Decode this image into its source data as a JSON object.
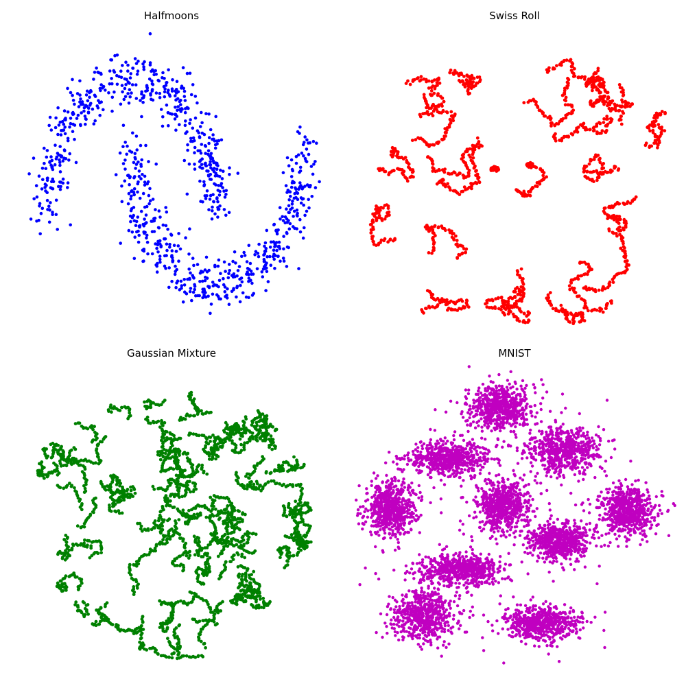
{
  "chart_data": [
    {
      "type": "scatter",
      "title": "Halfmoons",
      "color": "#0000ff",
      "point_radius": 2.3,
      "axes": "off",
      "grid": false,
      "xlim": [
        -1.25,
        2.25
      ],
      "ylim": [
        -0.8,
        1.3
      ],
      "generator": "two interleaving half-circles with gaussian noise",
      "n_points": 1000,
      "noise": 0.1
    },
    {
      "type": "scatter",
      "title": "Swiss Roll",
      "color": "#ff0000",
      "point_radius": 2.4,
      "axes": "off",
      "grid": false,
      "xlim": [
        -1.0,
        1.0
      ],
      "ylim": [
        -1.0,
        1.0
      ],
      "generator": "2-D embedding of a swiss roll as meandering chains",
      "n_points": 1500
    },
    {
      "type": "scatter",
      "title": "Gaussian Mixture",
      "color": "#008000",
      "point_radius": 2.4,
      "axes": "off",
      "grid": false,
      "xlim": [
        -1.0,
        1.0
      ],
      "ylim": [
        -1.0,
        1.0
      ],
      "generator": "2-D embedding of gaussian mixture, filling a blob",
      "n_points": 2500
    },
    {
      "type": "scatter",
      "title": "MNIST",
      "color": "#c000c0",
      "point_radius": 2.2,
      "axes": "off",
      "grid": false,
      "xlim": [
        -1.0,
        1.0
      ],
      "ylim": [
        -1.0,
        1.0
      ],
      "generator": "2-D embedding with 10 dense clusters",
      "n_points": 6000,
      "clusters": [
        {
          "cx": -0.12,
          "cy": 0.78,
          "sx": 0.19,
          "sy": 0.14,
          "weight": 1
        },
        {
          "cx": -0.45,
          "cy": 0.42,
          "sx": 0.24,
          "sy": 0.11,
          "weight": 1
        },
        {
          "cx": 0.31,
          "cy": 0.48,
          "sx": 0.22,
          "sy": 0.14,
          "weight": 1
        },
        {
          "cx": -0.84,
          "cy": 0.08,
          "sx": 0.15,
          "sy": 0.18,
          "weight": 1
        },
        {
          "cx": -0.09,
          "cy": 0.09,
          "sx": 0.16,
          "sy": 0.16,
          "weight": 1
        },
        {
          "cx": 0.74,
          "cy": 0.07,
          "sx": 0.17,
          "sy": 0.15,
          "weight": 1
        },
        {
          "cx": 0.28,
          "cy": -0.15,
          "sx": 0.17,
          "sy": 0.12,
          "weight": 1
        },
        {
          "cx": -0.38,
          "cy": -0.35,
          "sx": 0.24,
          "sy": 0.1,
          "weight": 1
        },
        {
          "cx": -0.62,
          "cy": -0.67,
          "sx": 0.2,
          "sy": 0.16,
          "weight": 1
        },
        {
          "cx": 0.16,
          "cy": -0.72,
          "sx": 0.22,
          "sy": 0.11,
          "weight": 1
        }
      ]
    }
  ]
}
